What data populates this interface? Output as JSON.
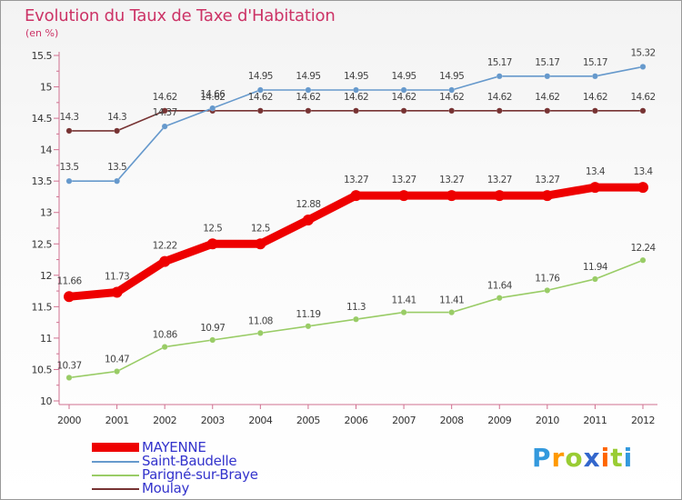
{
  "header": {
    "title": "Evolution du Taux de Taxe d'Habitation",
    "unit": "(en %)"
  },
  "logo": {
    "text": "Proxiti",
    "letters": [
      "P",
      "r",
      "o",
      "x",
      "i",
      "t",
      "i"
    ],
    "colors": [
      "#3399dd",
      "#ff9900",
      "#99cc33",
      "#3366cc",
      "#ff6600",
      "#99cc33",
      "#3399dd"
    ]
  },
  "chart_data": {
    "type": "line",
    "title": "Evolution du Taux de Taxe d'Habitation",
    "ylabel": "(en %)",
    "xlabel": "",
    "x": [
      2000,
      2001,
      2002,
      2003,
      2004,
      2005,
      2006,
      2007,
      2008,
      2009,
      2010,
      2011,
      2012
    ],
    "ylim": [
      10,
      15.5
    ],
    "yticks": [
      "10",
      "10.5",
      "11",
      "11.5",
      "12",
      "12.5",
      "13",
      "13.5",
      "14",
      "14.5",
      "15",
      "15.5"
    ],
    "grid": false,
    "legend_position": "bottom-left",
    "series": [
      {
        "name": "MAYENNE",
        "color": "#ee0000",
        "values": [
          11.66,
          11.73,
          12.22,
          12.5,
          12.5,
          12.88,
          13.27,
          13.27,
          13.27,
          13.27,
          13.27,
          13.4,
          13.4
        ],
        "labels": [
          "11.66",
          "11.73",
          "12.22",
          "12.5",
          "12.5",
          "12.88",
          "13.27",
          "13.27",
          "13.27",
          "13.27",
          "13.27",
          "13.4",
          "13.4"
        ]
      },
      {
        "name": "Saint-Baudelle",
        "color": "#6699cc",
        "values": [
          13.5,
          13.5,
          14.37,
          14.66,
          14.95,
          14.95,
          14.95,
          14.95,
          14.95,
          15.17,
          15.17,
          15.17,
          15.32
        ],
        "labels": [
          "13.5",
          "13.5",
          "14.37",
          "14.66",
          "14.95",
          "14.95",
          "14.95",
          "14.95",
          "14.95",
          "15.17",
          "15.17",
          "15.17",
          "15.32"
        ]
      },
      {
        "name": "Parigné-sur-Braye",
        "color": "#99cc66",
        "values": [
          10.37,
          10.47,
          10.86,
          10.97,
          11.08,
          11.19,
          11.3,
          11.41,
          11.41,
          11.64,
          11.76,
          11.94,
          12.24
        ],
        "labels": [
          "10.37",
          "10.47",
          "10.86",
          "10.97",
          "11.08",
          "11.19",
          "11.3",
          "11.41",
          "11.41",
          "11.64",
          "11.76",
          "11.94",
          "12.24"
        ]
      },
      {
        "name": "Moulay",
        "color": "#773333",
        "values": [
          14.3,
          14.3,
          14.62,
          14.62,
          14.62,
          14.62,
          14.62,
          14.62,
          14.62,
          14.62,
          14.62,
          14.62,
          14.62
        ],
        "labels": [
          "14.3",
          "14.3",
          "14.62",
          "14.62",
          "14.62",
          "14.62",
          "14.62",
          "14.62",
          "14.62",
          "14.62",
          "14.62",
          "14.62",
          "14.62"
        ]
      }
    ]
  }
}
